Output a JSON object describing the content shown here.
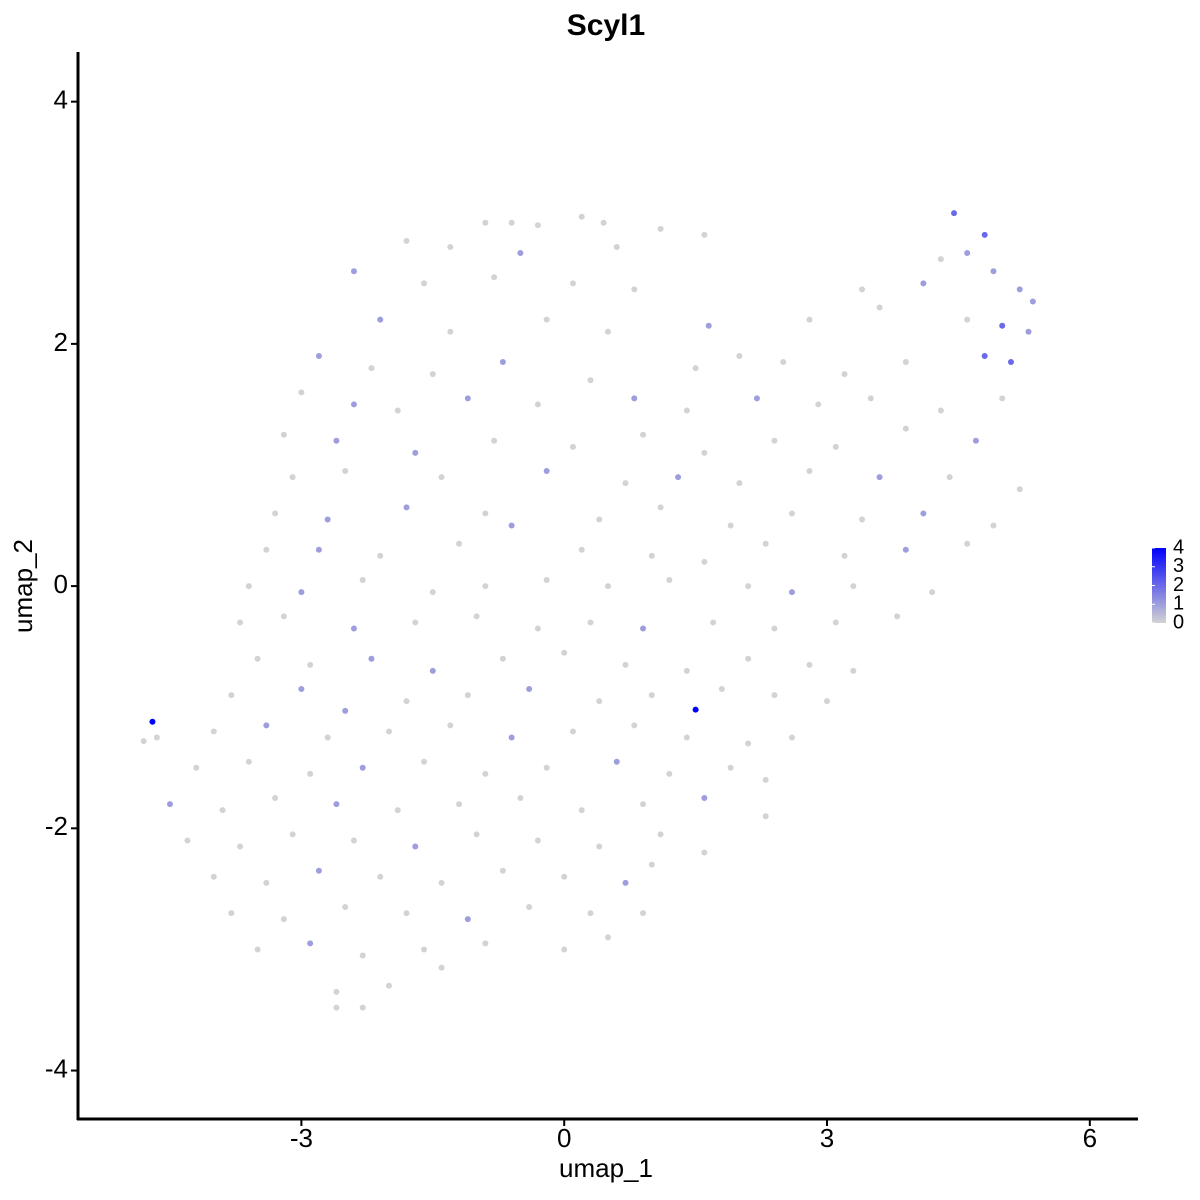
{
  "chart_data": {
    "type": "scatter",
    "title": "Scyl1",
    "x_label": "umap_1",
    "y_label": "umap_2",
    "x": [
      -0.9,
      -0.6,
      -0.3,
      0.2,
      0.45,
      1.1,
      4.45,
      4.8,
      -1.8,
      -1.3,
      -0.5,
      0.6,
      1.6,
      4.6,
      4.3,
      4.9,
      -2.4,
      -1.6,
      -0.8,
      0.1,
      0.8,
      3.4,
      4.1,
      5.2,
      5.35,
      -2.1,
      -1.3,
      -0.2,
      0.5,
      1.65,
      2.8,
      3.6,
      4.6,
      5.0,
      5.3,
      -2.8,
      -2.2,
      -1.5,
      -0.7,
      0.3,
      1.5,
      2.0,
      2.5,
      3.2,
      3.9,
      4.8,
      5.1,
      -3.0,
      -2.4,
      -1.9,
      -1.1,
      -0.3,
      0.8,
      1.4,
      2.2,
      2.9,
      3.5,
      4.3,
      5.0,
      -3.2,
      -2.6,
      -1.7,
      -0.8,
      0.1,
      0.9,
      1.6,
      2.4,
      3.1,
      3.9,
      4.7,
      -3.1,
      -2.5,
      -1.4,
      -0.2,
      0.7,
      1.3,
      2.0,
      2.8,
      3.6,
      4.4,
      5.2,
      -3.3,
      -2.7,
      -1.8,
      -0.9,
      0.4,
      1.1,
      1.9,
      2.6,
      3.4,
      4.1,
      4.9,
      -3.4,
      -2.8,
      -2.1,
      -1.2,
      -0.6,
      0.2,
      1.0,
      1.6,
      2.3,
      3.2,
      3.9,
      4.6,
      -3.6,
      -3.0,
      -2.3,
      -1.5,
      -0.9,
      -0.2,
      0.5,
      1.2,
      2.1,
      2.6,
      3.3,
      4.2,
      -3.7,
      -3.2,
      -2.4,
      -1.7,
      -1.0,
      -0.3,
      0.3,
      0.9,
      1.7,
      2.4,
      3.1,
      3.8,
      -3.5,
      -2.9,
      -2.2,
      -1.5,
      -0.7,
      0.0,
      0.7,
      1.4,
      2.1,
      2.8,
      3.3,
      -3.8,
      -3.0,
      -2.5,
      -1.8,
      -1.1,
      -0.4,
      0.4,
      1.0,
      1.8,
      2.4,
      3.0,
      -4.7,
      -4.8,
      -4.65,
      -4.0,
      -3.4,
      -2.7,
      -2.0,
      -1.3,
      -0.6,
      0.1,
      0.8,
      1.5,
      1.4,
      2.1,
      2.6,
      -4.2,
      -3.6,
      -2.9,
      -2.3,
      -1.6,
      -0.9,
      -0.2,
      0.6,
      1.2,
      1.9,
      2.3,
      -4.5,
      -3.9,
      -3.3,
      -2.6,
      -1.9,
      -1.2,
      -0.5,
      0.2,
      0.9,
      1.6,
      2.3,
      -4.3,
      -3.7,
      -3.1,
      -2.4,
      -1.7,
      -1.0,
      -0.3,
      0.4,
      1.1,
      1.6,
      -4.0,
      -3.4,
      -2.8,
      -2.1,
      -1.4,
      -0.7,
      0.0,
      0.7,
      1.0,
      -3.8,
      -3.2,
      -2.5,
      -1.8,
      -1.1,
      -0.4,
      0.3,
      0.9,
      -3.5,
      -2.9,
      -2.3,
      -1.6,
      -0.9,
      0.0,
      0.5,
      -2.6,
      -2.0,
      -1.4,
      -2.3,
      -2.6
    ],
    "y": [
      3.0,
      3.0,
      2.98,
      3.05,
      3.0,
      2.95,
      3.08,
      2.9,
      2.85,
      2.8,
      2.75,
      2.8,
      2.9,
      2.75,
      2.7,
      2.6,
      2.6,
      2.5,
      2.55,
      2.5,
      2.45,
      2.45,
      2.5,
      2.45,
      2.35,
      2.2,
      2.1,
      2.2,
      2.1,
      2.15,
      2.2,
      2.3,
      2.2,
      2.15,
      2.1,
      1.9,
      1.8,
      1.75,
      1.85,
      1.7,
      1.8,
      1.9,
      1.85,
      1.75,
      1.85,
      1.9,
      1.85,
      1.6,
      1.5,
      1.45,
      1.55,
      1.5,
      1.55,
      1.45,
      1.55,
      1.5,
      1.55,
      1.45,
      1.55,
      1.25,
      1.2,
      1.1,
      1.2,
      1.15,
      1.25,
      1.1,
      1.2,
      1.15,
      1.3,
      1.2,
      0.9,
      0.95,
      0.9,
      0.95,
      0.85,
      0.9,
      0.85,
      0.95,
      0.9,
      0.9,
      0.8,
      0.6,
      0.55,
      0.65,
      0.6,
      0.55,
      0.65,
      0.5,
      0.6,
      0.55,
      0.6,
      0.5,
      0.3,
      0.3,
      0.25,
      0.35,
      0.5,
      0.3,
      0.25,
      0.2,
      0.35,
      0.25,
      0.3,
      0.35,
      0,
      -0.05,
      0.05,
      -0.05,
      0,
      0.05,
      0,
      0.05,
      0,
      -0.05,
      0,
      -0.05,
      -0.3,
      -0.25,
      -0.35,
      -0.3,
      -0.25,
      -0.35,
      -0.3,
      -0.35,
      -0.3,
      -0.35,
      -0.3,
      -0.25,
      -0.6,
      -0.65,
      -0.6,
      -0.7,
      -0.6,
      -0.55,
      -0.65,
      -0.7,
      -0.6,
      -0.65,
      -0.7,
      -0.9,
      -0.85,
      -1.03,
      -0.95,
      -0.9,
      -0.85,
      -0.95,
      -0.9,
      -0.85,
      -0.9,
      -0.95,
      -1.12,
      -1.28,
      -1.25,
      -1.2,
      -1.15,
      -1.25,
      -1.2,
      -1.15,
      -1.25,
      -1.2,
      -1.15,
      -1.02,
      -1.25,
      -1.3,
      -1.25,
      -1.5,
      -1.45,
      -1.55,
      -1.5,
      -1.45,
      -1.55,
      -1.5,
      -1.45,
      -1.55,
      -1.5,
      -1.6,
      -1.8,
      -1.85,
      -1.75,
      -1.8,
      -1.85,
      -1.8,
      -1.75,
      -1.85,
      -1.8,
      -1.75,
      -1.9,
      -2.1,
      -2.15,
      -2.05,
      -2.1,
      -2.15,
      -2.05,
      -2.1,
      -2.15,
      -2.05,
      -2.2,
      -2.4,
      -2.45,
      -2.35,
      -2.4,
      -2.45,
      -2.35,
      -2.4,
      -2.45,
      -2.3,
      -2.7,
      -2.75,
      -2.65,
      -2.7,
      -2.75,
      -2.65,
      -2.7,
      -2.7,
      -3.0,
      -2.95,
      -3.05,
      -3.0,
      -2.95,
      -3.0,
      -2.9,
      -3.35,
      -3.3,
      -3.15,
      -3.48,
      -3.48
    ],
    "values": [
      0,
      0,
      0,
      0,
      0,
      0,
      2,
      2,
      0,
      0,
      1,
      0,
      0,
      1,
      0,
      1,
      1,
      0,
      0,
      0,
      0,
      0,
      1,
      1,
      1,
      1,
      0,
      0,
      0,
      1,
      0,
      0,
      0,
      2,
      1,
      1,
      0,
      0,
      1,
      0,
      0,
      0,
      0,
      0,
      0,
      2,
      2,
      0,
      1,
      0,
      1,
      0,
      1,
      0,
      1,
      0,
      0,
      0,
      0,
      0,
      1,
      1,
      0,
      0,
      0,
      0,
      0,
      0,
      0,
      1,
      0,
      0,
      0,
      1,
      0,
      1,
      0,
      0,
      1,
      0,
      0,
      0,
      1,
      1,
      0,
      0,
      0,
      0,
      0,
      0,
      1,
      0,
      0,
      1,
      0,
      0,
      1,
      0,
      0,
      0,
      0,
      0,
      1,
      0,
      0,
      1,
      0,
      0,
      0,
      0,
      0,
      0,
      0,
      1,
      0,
      0,
      0,
      0,
      1,
      0,
      0,
      0,
      0,
      1,
      0,
      0,
      0,
      0,
      0,
      0,
      1,
      1,
      0,
      0,
      0,
      0,
      0,
      0,
      0,
      0,
      1,
      1,
      0,
      0,
      1,
      0,
      0,
      0,
      0,
      0,
      4,
      0,
      0,
      0,
      1,
      0,
      0,
      0,
      1,
      0,
      0,
      4,
      0,
      0,
      0,
      0,
      0,
      0,
      1,
      0,
      0,
      0,
      1,
      0,
      0,
      0,
      1,
      0,
      0,
      1,
      0,
      0,
      0,
      0,
      0,
      1,
      0,
      0,
      0,
      0,
      0,
      1,
      0,
      0,
      0,
      0,
      0,
      0,
      0,
      1,
      0,
      0,
      0,
      0,
      1,
      0,
      0,
      0,
      0,
      0,
      1,
      0,
      0,
      0,
      0,
      1,
      0,
      0,
      0,
      0,
      0,
      0,
      0,
      0,
      0,
      0
    ],
    "xlim": [
      -5.55,
      6.55
    ],
    "ylim": [
      -4.4,
      4.41
    ],
    "xticks": [
      -3,
      0,
      3,
      6
    ],
    "yticks": [
      -4,
      -2,
      0,
      2,
      4
    ],
    "color_low": "#d3d3d3",
    "color_high": "#0000ff",
    "colorbar_lim": [
      0,
      4
    ],
    "colorbar_ticks": [
      0,
      1,
      2,
      3,
      4
    ],
    "legend_position": "right"
  }
}
